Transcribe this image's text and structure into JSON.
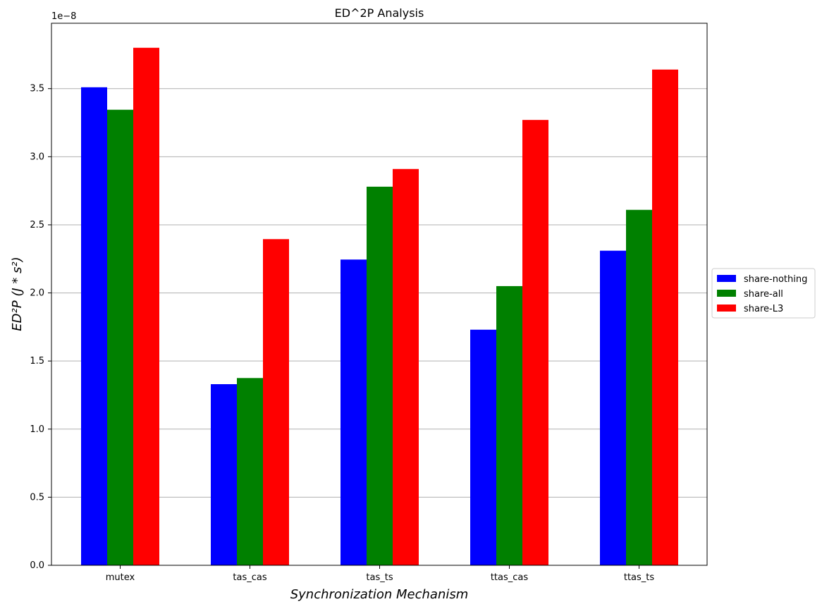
{
  "chart_data": {
    "type": "bar",
    "title": "ED^2P Analysis",
    "xlabel": "Synchronization Mechanism",
    "ylabel": "ED²P (J * s²)",
    "offset_label": "1e−8",
    "categories": [
      "mutex",
      "tas_cas",
      "tas_ts",
      "ttas_cas",
      "ttas_ts"
    ],
    "series": [
      {
        "name": "share-nothing",
        "color": "#0000ff",
        "values": [
          3.51,
          1.33,
          2.245,
          1.73,
          2.31
        ]
      },
      {
        "name": "share-all",
        "color": "#008000",
        "values": [
          3.345,
          1.375,
          2.78,
          2.05,
          2.61
        ]
      },
      {
        "name": "share-L3",
        "color": "#ff0000",
        "values": [
          3.8,
          2.395,
          2.91,
          3.27,
          3.64
        ]
      }
    ],
    "ylim": [
      0,
      3.98
    ],
    "yticks": [
      0.0,
      0.5,
      1.0,
      1.5,
      2.0,
      2.5,
      3.0,
      3.5
    ],
    "ytick_labels": [
      "0.0",
      "0.5",
      "1.0",
      "1.5",
      "2.0",
      "2.5",
      "3.0",
      "3.5"
    ],
    "grid": "y",
    "legend_position": "right, outside plot"
  }
}
